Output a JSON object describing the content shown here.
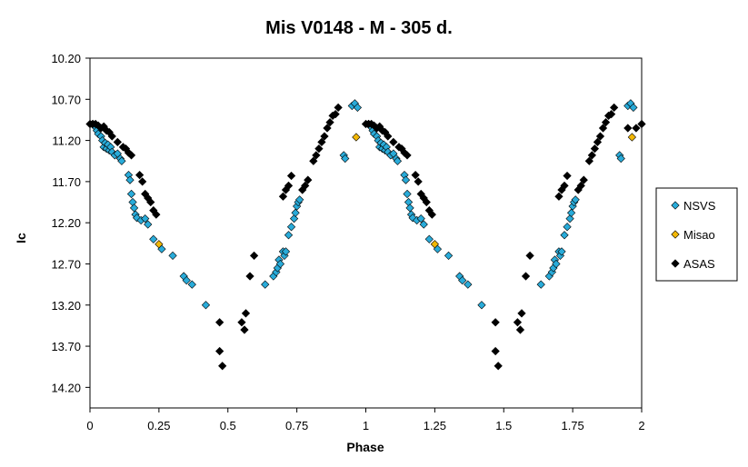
{
  "chart_data": {
    "type": "scatter",
    "title": "Mis V0148 - M - 305 d.",
    "xlabel": "Phase",
    "ylabel": "Ic",
    "xlim": [
      0,
      2
    ],
    "ylim": [
      10.2,
      14.45
    ],
    "y_inverted": true,
    "grid": false,
    "legend_position": "right",
    "x_ticks": [
      "0",
      "0.25",
      "0.5",
      "0.75",
      "1",
      "1.25",
      "1.5",
      "1.75",
      "2"
    ],
    "x_tick_values": [
      0,
      0.25,
      0.5,
      0.75,
      1,
      1.25,
      1.5,
      1.75,
      2
    ],
    "y_ticks": [
      "10.20",
      "10.70",
      "11.20",
      "11.70",
      "12.20",
      "12.70",
      "13.20",
      "13.70",
      "14.20"
    ],
    "y_tick_values": [
      10.2,
      10.7,
      11.2,
      11.7,
      12.2,
      12.7,
      13.2,
      13.7,
      14.2
    ],
    "series": [
      {
        "name": "NSVS",
        "color": "#29abd9",
        "marker": "diamond",
        "points": [
          [
            0.01,
            11.0
          ],
          [
            0.02,
            11.04
          ],
          [
            0.025,
            11.08
          ],
          [
            0.03,
            11.12
          ],
          [
            0.04,
            11.15
          ],
          [
            0.045,
            11.2
          ],
          [
            0.05,
            11.28
          ],
          [
            0.055,
            11.23
          ],
          [
            0.06,
            11.3
          ],
          [
            0.065,
            11.25
          ],
          [
            0.07,
            11.32
          ],
          [
            0.075,
            11.28
          ],
          [
            0.08,
            11.34
          ],
          [
            0.09,
            11.38
          ],
          [
            0.1,
            11.36
          ],
          [
            0.11,
            11.42
          ],
          [
            0.115,
            11.45
          ],
          [
            0.14,
            11.62
          ],
          [
            0.145,
            11.68
          ],
          [
            0.15,
            11.85
          ],
          [
            0.155,
            11.95
          ],
          [
            0.16,
            12.02
          ],
          [
            0.165,
            12.1
          ],
          [
            0.17,
            12.14
          ],
          [
            0.185,
            12.17
          ],
          [
            0.2,
            12.15
          ],
          [
            0.21,
            12.22
          ],
          [
            0.23,
            12.4
          ],
          [
            0.26,
            12.52
          ],
          [
            0.3,
            12.6
          ],
          [
            0.34,
            12.85
          ],
          [
            0.35,
            12.9
          ],
          [
            0.37,
            12.95
          ],
          [
            0.42,
            13.2
          ],
          [
            0.635,
            12.95
          ],
          [
            0.665,
            12.85
          ],
          [
            0.675,
            12.8
          ],
          [
            0.68,
            12.75
          ],
          [
            0.685,
            12.65
          ],
          [
            0.69,
            12.7
          ],
          [
            0.7,
            12.55
          ],
          [
            0.705,
            12.6
          ],
          [
            0.71,
            12.55
          ],
          [
            0.72,
            12.35
          ],
          [
            0.73,
            12.25
          ],
          [
            0.74,
            12.15
          ],
          [
            0.745,
            12.08
          ],
          [
            0.75,
            12.0
          ],
          [
            0.755,
            11.95
          ],
          [
            0.76,
            11.92
          ],
          [
            0.92,
            11.38
          ],
          [
            0.925,
            11.42
          ],
          [
            0.95,
            10.78
          ],
          [
            0.96,
            10.75
          ],
          [
            0.97,
            10.8
          ],
          [
            1.01,
            11.0
          ],
          [
            1.02,
            11.04
          ],
          [
            1.025,
            11.08
          ],
          [
            1.03,
            11.12
          ],
          [
            1.04,
            11.15
          ],
          [
            1.045,
            11.2
          ],
          [
            1.05,
            11.28
          ],
          [
            1.055,
            11.23
          ],
          [
            1.06,
            11.3
          ],
          [
            1.065,
            11.25
          ],
          [
            1.07,
            11.32
          ],
          [
            1.075,
            11.28
          ],
          [
            1.08,
            11.34
          ],
          [
            1.09,
            11.38
          ],
          [
            1.1,
            11.36
          ],
          [
            1.11,
            11.42
          ],
          [
            1.115,
            11.45
          ],
          [
            1.14,
            11.62
          ],
          [
            1.145,
            11.68
          ],
          [
            1.15,
            11.85
          ],
          [
            1.155,
            11.95
          ],
          [
            1.16,
            12.02
          ],
          [
            1.165,
            12.1
          ],
          [
            1.17,
            12.14
          ],
          [
            1.185,
            12.17
          ],
          [
            1.2,
            12.15
          ],
          [
            1.21,
            12.22
          ],
          [
            1.23,
            12.4
          ],
          [
            1.26,
            12.52
          ],
          [
            1.3,
            12.6
          ],
          [
            1.34,
            12.85
          ],
          [
            1.35,
            12.9
          ],
          [
            1.37,
            12.95
          ],
          [
            1.42,
            13.2
          ],
          [
            1.635,
            12.95
          ],
          [
            1.665,
            12.85
          ],
          [
            1.675,
            12.8
          ],
          [
            1.68,
            12.75
          ],
          [
            1.685,
            12.65
          ],
          [
            1.69,
            12.7
          ],
          [
            1.7,
            12.55
          ],
          [
            1.705,
            12.6
          ],
          [
            1.71,
            12.55
          ],
          [
            1.72,
            12.35
          ],
          [
            1.73,
            12.25
          ],
          [
            1.74,
            12.15
          ],
          [
            1.745,
            12.08
          ],
          [
            1.75,
            12.0
          ],
          [
            1.755,
            11.95
          ],
          [
            1.76,
            11.92
          ],
          [
            1.92,
            11.38
          ],
          [
            1.925,
            11.42
          ],
          [
            1.95,
            10.78
          ],
          [
            1.96,
            10.75
          ],
          [
            1.97,
            10.8
          ]
        ]
      },
      {
        "name": "Misao",
        "color": "#f2b705",
        "marker": "diamond",
        "points": [
          [
            0.25,
            12.46
          ],
          [
            0.965,
            11.16
          ],
          [
            1.25,
            12.46
          ],
          [
            1.965,
            11.16
          ]
        ]
      },
      {
        "name": "ASAS",
        "color": "#000000",
        "marker": "diamond",
        "points": [
          [
            0.0,
            11.0
          ],
          [
            0.01,
            11.0
          ],
          [
            0.02,
            11.0
          ],
          [
            0.03,
            11.02
          ],
          [
            0.04,
            11.05
          ],
          [
            0.05,
            11.03
          ],
          [
            0.06,
            11.08
          ],
          [
            0.07,
            11.1
          ],
          [
            0.08,
            11.15
          ],
          [
            0.1,
            11.22
          ],
          [
            0.12,
            11.28
          ],
          [
            0.13,
            11.3
          ],
          [
            0.14,
            11.35
          ],
          [
            0.15,
            11.38
          ],
          [
            0.18,
            11.62
          ],
          [
            0.19,
            11.7
          ],
          [
            0.2,
            11.85
          ],
          [
            0.21,
            11.9
          ],
          [
            0.22,
            11.95
          ],
          [
            0.23,
            12.05
          ],
          [
            0.24,
            12.1
          ],
          [
            0.47,
            13.41
          ],
          [
            0.47,
            13.76
          ],
          [
            0.48,
            13.94
          ],
          [
            0.55,
            13.41
          ],
          [
            0.56,
            13.5
          ],
          [
            0.565,
            13.3
          ],
          [
            0.58,
            12.85
          ],
          [
            0.595,
            12.6
          ],
          [
            0.7,
            11.88
          ],
          [
            0.71,
            11.8
          ],
          [
            0.72,
            11.75
          ],
          [
            0.73,
            11.63
          ],
          [
            0.77,
            11.8
          ],
          [
            0.78,
            11.75
          ],
          [
            0.79,
            11.68
          ],
          [
            0.81,
            11.45
          ],
          [
            0.82,
            11.38
          ],
          [
            0.83,
            11.3
          ],
          [
            0.84,
            11.22
          ],
          [
            0.85,
            11.15
          ],
          [
            0.86,
            11.05
          ],
          [
            0.87,
            10.98
          ],
          [
            0.88,
            10.9
          ],
          [
            0.89,
            10.88
          ],
          [
            0.9,
            10.8
          ],
          [
            1.0,
            11.0
          ],
          [
            1.01,
            11.0
          ],
          [
            1.02,
            11.0
          ],
          [
            1.03,
            11.02
          ],
          [
            1.04,
            11.05
          ],
          [
            1.05,
            11.03
          ],
          [
            1.06,
            11.08
          ],
          [
            1.07,
            11.1
          ],
          [
            1.08,
            11.15
          ],
          [
            1.1,
            11.22
          ],
          [
            1.12,
            11.28
          ],
          [
            1.13,
            11.3
          ],
          [
            1.14,
            11.35
          ],
          [
            1.15,
            11.38
          ],
          [
            1.18,
            11.62
          ],
          [
            1.19,
            11.7
          ],
          [
            1.2,
            11.85
          ],
          [
            1.21,
            11.9
          ],
          [
            1.22,
            11.95
          ],
          [
            1.23,
            12.05
          ],
          [
            1.24,
            12.1
          ],
          [
            1.47,
            13.41
          ],
          [
            1.47,
            13.76
          ],
          [
            1.48,
            13.94
          ],
          [
            1.55,
            13.41
          ],
          [
            1.56,
            13.5
          ],
          [
            1.565,
            13.3
          ],
          [
            1.58,
            12.85
          ],
          [
            1.595,
            12.6
          ],
          [
            1.7,
            11.88
          ],
          [
            1.71,
            11.8
          ],
          [
            1.72,
            11.75
          ],
          [
            1.73,
            11.63
          ],
          [
            1.77,
            11.8
          ],
          [
            1.78,
            11.75
          ],
          [
            1.79,
            11.68
          ],
          [
            1.81,
            11.45
          ],
          [
            1.82,
            11.38
          ],
          [
            1.83,
            11.3
          ],
          [
            1.84,
            11.22
          ],
          [
            1.85,
            11.15
          ],
          [
            1.86,
            11.05
          ],
          [
            1.87,
            10.98
          ],
          [
            1.88,
            10.9
          ],
          [
            1.89,
            10.88
          ],
          [
            1.9,
            10.8
          ],
          [
            1.95,
            11.05
          ],
          [
            1.98,
            11.05
          ],
          [
            2.0,
            11.0
          ]
        ]
      }
    ]
  }
}
